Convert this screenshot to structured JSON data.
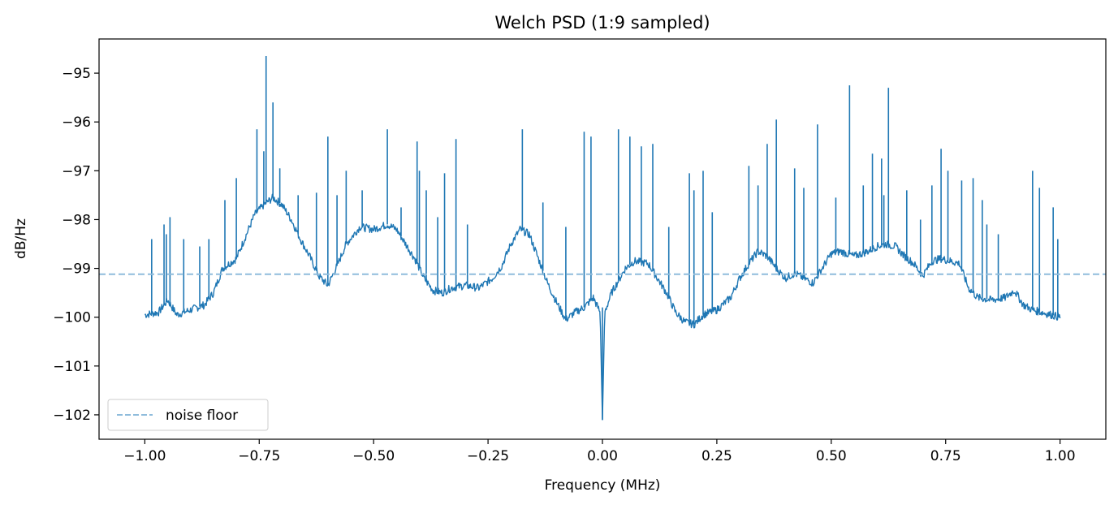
{
  "chart_data": {
    "type": "line",
    "title": "Welch PSD (1:9 sampled)",
    "xlabel": "Frequency (MHz)",
    "ylabel": "dB/Hz",
    "xlim": [
      -1.1,
      1.1
    ],
    "ylim": [
      -102.5,
      -94.3
    ],
    "xticks": [
      -1.0,
      -0.75,
      -0.5,
      -0.25,
      0.0,
      0.25,
      0.5,
      0.75,
      1.0
    ],
    "xtick_labels": [
      "−1.00",
      "−0.75",
      "−0.50",
      "−0.25",
      "0.00",
      "0.25",
      "0.50",
      "0.75",
      "1.00"
    ],
    "yticks": [
      -102,
      -101,
      -100,
      -99,
      -98,
      -97,
      -96,
      -95
    ],
    "ytick_labels": [
      "−102",
      "−101",
      "−100",
      "−99",
      "−98",
      "−97",
      "−96",
      "−95"
    ],
    "grid": false,
    "legend": {
      "placement": "lower-left",
      "entries": [
        "noise floor"
      ]
    },
    "colors": {
      "psd": "#1f77b4",
      "noise_floor": "#8fbcdc"
    },
    "series": [
      {
        "style": "solid",
        "x": [
          -1.0,
          -0.97,
          -0.95,
          -0.93,
          -0.9,
          -0.87,
          -0.85,
          -0.83,
          -0.8,
          -0.78,
          -0.76,
          -0.74,
          -0.72,
          -0.7,
          -0.68,
          -0.66,
          -0.64,
          -0.62,
          -0.6,
          -0.58,
          -0.56,
          -0.53,
          -0.5,
          -0.47,
          -0.45,
          -0.43,
          -0.41,
          -0.39,
          -0.37,
          -0.35,
          -0.33,
          -0.3,
          -0.27,
          -0.24,
          -0.22,
          -0.2,
          -0.18,
          -0.16,
          -0.14,
          -0.12,
          -0.1,
          -0.08,
          -0.06,
          -0.04,
          -0.02,
          -0.005,
          0.0,
          0.005,
          0.02,
          0.05,
          0.07,
          0.1,
          0.12,
          0.14,
          0.16,
          0.18,
          0.2,
          0.22,
          0.25,
          0.28,
          0.3,
          0.32,
          0.34,
          0.36,
          0.38,
          0.4,
          0.42,
          0.44,
          0.46,
          0.48,
          0.5,
          0.52,
          0.55,
          0.58,
          0.6,
          0.62,
          0.64,
          0.66,
          0.68,
          0.7,
          0.72,
          0.74,
          0.76,
          0.78,
          0.8,
          0.82,
          0.85,
          0.88,
          0.9,
          0.92,
          0.94,
          0.96,
          0.98,
          1.0
        ],
        "y": [
          -99.95,
          -99.9,
          -99.65,
          -99.95,
          -99.85,
          -99.75,
          -99.5,
          -99.0,
          -98.8,
          -98.35,
          -97.9,
          -97.7,
          -97.55,
          -97.7,
          -98.0,
          -98.4,
          -98.75,
          -99.15,
          -99.35,
          -98.95,
          -98.5,
          -98.15,
          -98.2,
          -98.1,
          -98.2,
          -98.5,
          -98.8,
          -99.2,
          -99.45,
          -99.5,
          -99.4,
          -99.35,
          -99.4,
          -99.2,
          -98.95,
          -98.5,
          -98.2,
          -98.3,
          -98.8,
          -99.3,
          -99.7,
          -100.05,
          -99.9,
          -99.8,
          -99.6,
          -99.9,
          -102.1,
          -99.9,
          -99.5,
          -99.0,
          -98.85,
          -98.9,
          -99.2,
          -99.5,
          -99.9,
          -100.1,
          -100.15,
          -99.95,
          -99.85,
          -99.6,
          -99.2,
          -98.9,
          -98.65,
          -98.75,
          -99.0,
          -99.2,
          -99.1,
          -99.2,
          -99.3,
          -99.0,
          -98.7,
          -98.65,
          -98.75,
          -98.65,
          -98.55,
          -98.5,
          -98.55,
          -98.75,
          -98.9,
          -99.15,
          -98.85,
          -98.8,
          -98.85,
          -98.9,
          -99.4,
          -99.6,
          -99.65,
          -99.6,
          -99.45,
          -99.75,
          -99.85,
          -99.9,
          -99.95,
          -100.0
        ]
      },
      {
        "style": "spikes",
        "x": [
          -0.985,
          -0.958,
          -0.953,
          -0.945,
          -0.915,
          -0.88,
          -0.86,
          -0.825,
          -0.8,
          -0.755,
          -0.74,
          -0.735,
          -0.72,
          -0.705,
          -0.665,
          -0.625,
          -0.6,
          -0.58,
          -0.56,
          -0.525,
          -0.47,
          -0.44,
          -0.405,
          -0.4,
          -0.385,
          -0.36,
          -0.345,
          -0.32,
          -0.295,
          -0.175,
          -0.13,
          -0.08,
          -0.04,
          -0.025,
          0.0,
          0.035,
          0.06,
          0.085,
          0.11,
          0.145,
          0.19,
          0.2,
          0.22,
          0.24,
          0.32,
          0.34,
          0.36,
          0.38,
          0.42,
          0.44,
          0.47,
          0.51,
          0.54,
          0.57,
          0.59,
          0.61,
          0.615,
          0.625,
          0.665,
          0.695,
          0.72,
          0.74,
          0.755,
          0.785,
          0.81,
          0.83,
          0.84,
          0.865,
          0.94,
          0.955,
          0.985,
          0.995
        ],
        "y": [
          -98.4,
          -98.1,
          -98.3,
          -97.95,
          -98.4,
          -98.55,
          -98.4,
          -97.6,
          -97.15,
          -96.15,
          -96.6,
          -94.65,
          -95.6,
          -96.95,
          -97.5,
          -97.45,
          -96.3,
          -97.5,
          -97.0,
          -97.4,
          -96.15,
          -97.75,
          -96.4,
          -97.0,
          -97.4,
          -97.95,
          -97.05,
          -96.35,
          -98.1,
          -96.15,
          -97.65,
          -98.15,
          -96.2,
          -96.3,
          -99.8,
          -96.15,
          -96.3,
          -96.5,
          -96.45,
          -98.15,
          -97.05,
          -97.4,
          -97.0,
          -97.85,
          -96.9,
          -97.3,
          -96.45,
          -95.95,
          -96.95,
          -97.35,
          -96.05,
          -97.55,
          -95.25,
          -97.3,
          -96.65,
          -96.75,
          -97.5,
          -95.3,
          -97.4,
          -98.0,
          -97.3,
          -96.55,
          -97.0,
          -97.2,
          -97.15,
          -97.6,
          -98.1,
          -98.3,
          -97.0,
          -97.35,
          -97.75,
          -98.4
        ]
      },
      {
        "name": "noise floor",
        "style": "dashed",
        "x": [
          -1.1,
          1.1
        ],
        "y": [
          -99.12,
          -99.12
        ]
      }
    ]
  }
}
